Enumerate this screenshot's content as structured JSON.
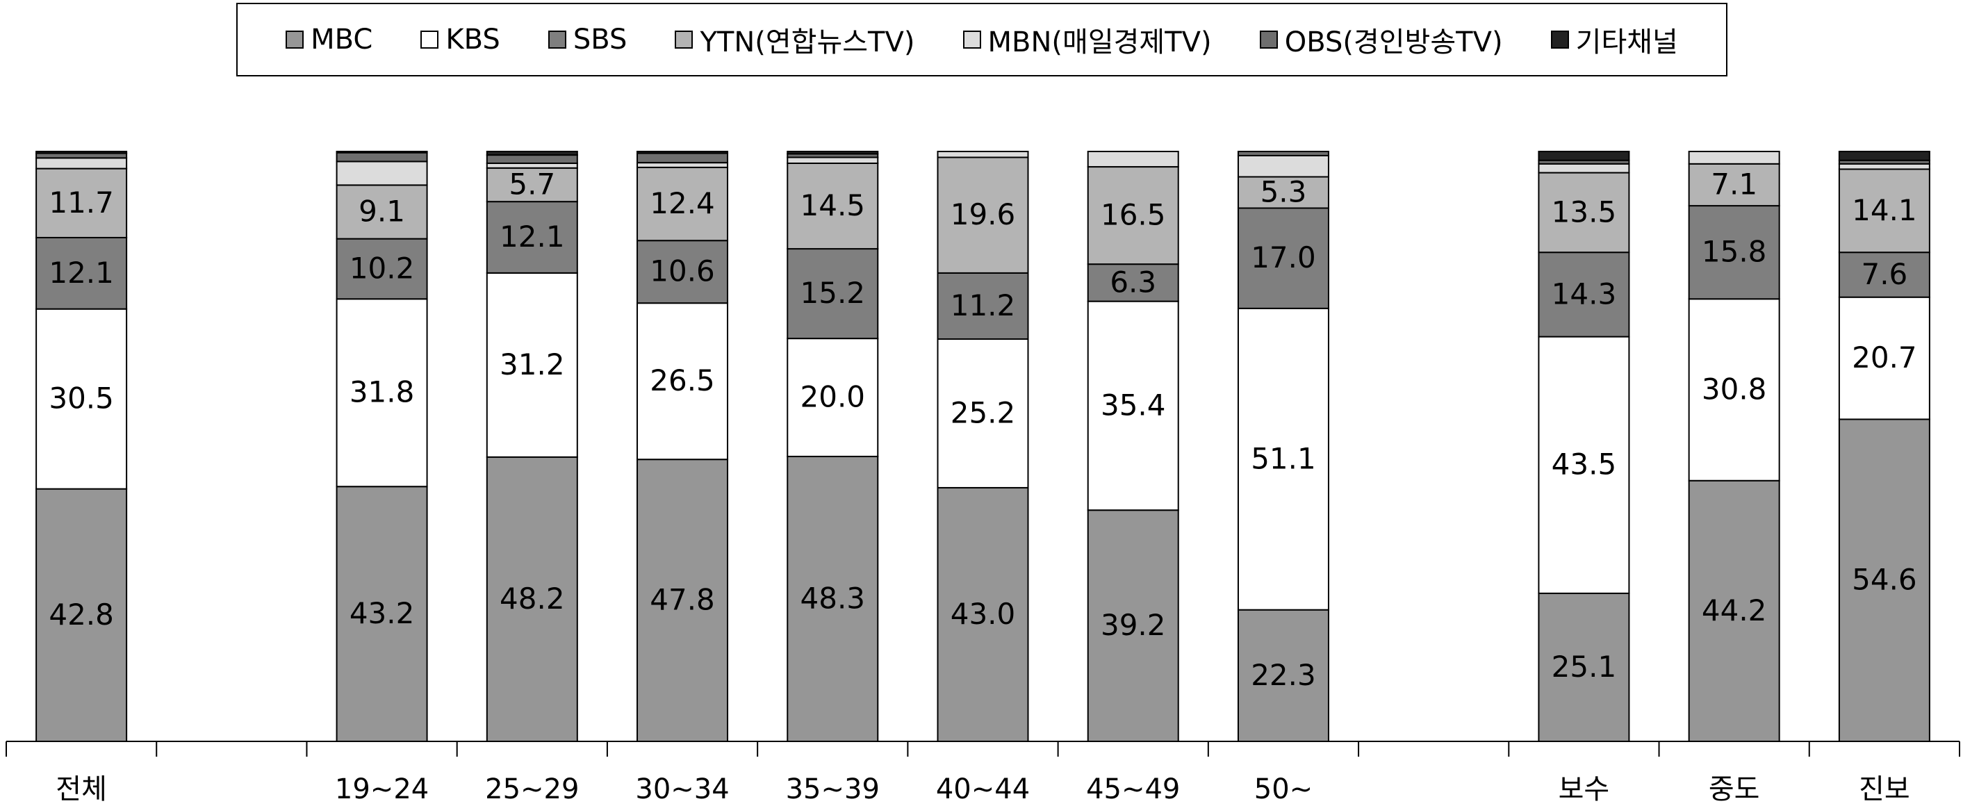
{
  "chart_data": {
    "type": "stacked_bar",
    "categories": [
      "전체",
      null,
      "19~24",
      "25~29",
      "30~34",
      "35~39",
      "40~44",
      "45~49",
      "50~",
      null,
      "보수",
      "중도",
      "진보"
    ],
    "ylim": [
      0,
      100
    ],
    "legend": "top",
    "series": [
      {
        "name": "MBC",
        "color": "#969696",
        "values": [
          42.8,
          null,
          43.2,
          48.2,
          47.8,
          48.3,
          43.0,
          39.2,
          22.3,
          null,
          25.1,
          44.2,
          54.6
        ],
        "value_labels": [
          "42.8",
          null,
          "43.2",
          "48.2",
          "47.8",
          "48.3",
          "43.0",
          "39.2",
          "22.3",
          null,
          "25.1",
          "44.2",
          "54.6"
        ]
      },
      {
        "name": "KBS",
        "color": "#ffffff",
        "values": [
          30.5,
          null,
          31.8,
          31.2,
          26.5,
          20.0,
          25.2,
          35.4,
          51.1,
          null,
          43.5,
          30.8,
          20.7
        ],
        "value_labels": [
          "30.5",
          null,
          "31.8",
          "31.2",
          "26.5",
          "20.0",
          "25.2",
          "35.4",
          "51.1",
          null,
          "43.5",
          "30.8",
          "20.7"
        ]
      },
      {
        "name": "SBS",
        "color": "#7f7f7f",
        "values": [
          12.1,
          null,
          10.2,
          12.1,
          10.6,
          15.2,
          11.2,
          6.3,
          17.0,
          null,
          14.3,
          15.8,
          7.6
        ],
        "value_labels": [
          "12.1",
          null,
          "10.2",
          "12.1",
          "10.6",
          "15.2",
          "11.2",
          "6.3",
          "17.0",
          null,
          "14.3",
          "15.8",
          "7.6"
        ]
      },
      {
        "name": "YTN(연합뉴스TV)",
        "color": "#b4b4b4",
        "values": [
          11.7,
          null,
          9.1,
          5.7,
          12.4,
          14.5,
          19.6,
          16.5,
          5.3,
          null,
          13.5,
          7.1,
          14.1
        ],
        "value_labels": [
          "11.7",
          null,
          "9.1",
          "5.7",
          "12.4",
          "14.5",
          "19.6",
          "16.5",
          "5.3",
          null,
          "13.5",
          "7.1",
          "14.1"
        ]
      },
      {
        "name": "MBN(매일경제TV)",
        "color": "#dcdcdc",
        "values": [
          1.8,
          null,
          4.0,
          0.8,
          0.8,
          1.0,
          1.0,
          2.6,
          3.6,
          null,
          1.5,
          2.1,
          0.9
        ]
      },
      {
        "name": "OBS(경인방송TV)",
        "color": "#6e6e6e",
        "values": [
          0.8,
          null,
          1.5,
          1.4,
          1.6,
          0.6,
          0,
          0,
          0.7,
          null,
          0.6,
          0,
          0.6
        ]
      },
      {
        "name": "기타채널",
        "color": "#222222",
        "values": [
          0.3,
          null,
          0.2,
          0.6,
          0.3,
          0.4,
          0,
          0,
          0,
          null,
          1.5,
          0,
          1.5
        ]
      }
    ]
  }
}
